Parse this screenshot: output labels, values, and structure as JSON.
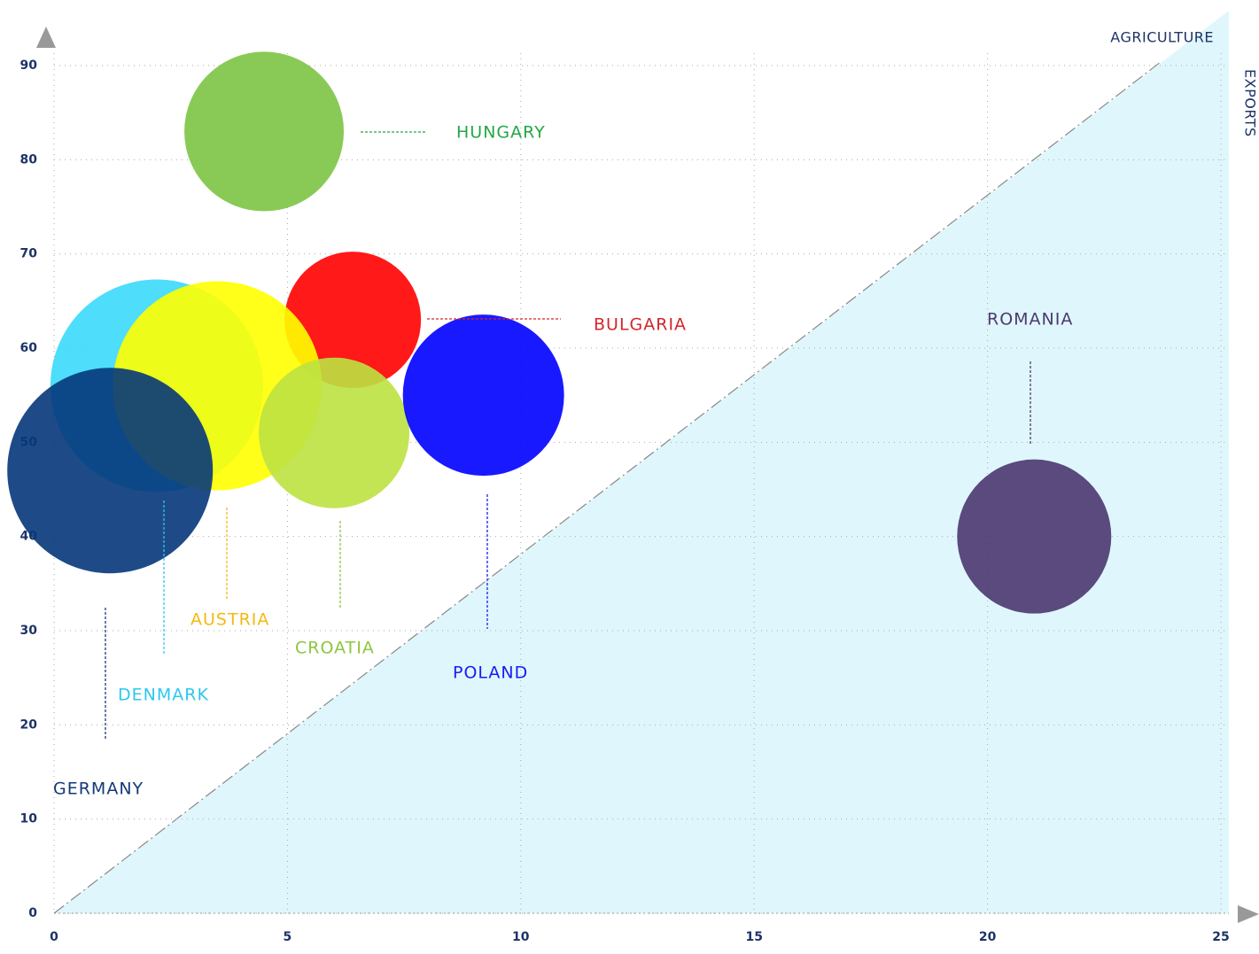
{
  "chart_data": {
    "type": "bubble",
    "x_label": "AGRICULTURE",
    "y_label": "EXPORTS",
    "xlim": [
      0,
      25
    ],
    "xticks": [
      0,
      5,
      10,
      15,
      20,
      25
    ],
    "ylim": [
      0,
      90
    ],
    "yticks": [
      0,
      10,
      20,
      30,
      40,
      50,
      60,
      70,
      80,
      90
    ],
    "grid": true,
    "series": [
      {
        "name": "HUNGARY",
        "color": "#7cc444",
        "label_color": "#23a845",
        "x": [
          4.5
        ],
        "values": [
          83
        ],
        "sizes": [
          90
        ]
      },
      {
        "name": "BULGARIA",
        "color": "#ff0000",
        "label_color": "#d3262b",
        "x": [
          6.4
        ],
        "values": [
          63
        ],
        "sizes": [
          77
        ]
      },
      {
        "name": "DENMARK",
        "color": "#3bd9fb",
        "label_color": "#2cc8ee",
        "x": [
          2.2
        ],
        "values": [
          56
        ],
        "sizes": [
          120
        ]
      },
      {
        "name": "AUSTRIA",
        "color": "#ffff00",
        "label_color": "#f4b915",
        "x": [
          3.5
        ],
        "values": [
          56
        ],
        "sizes": [
          118
        ]
      },
      {
        "name": "CROATIA",
        "color": "#bde241",
        "label_color": "#8dc63f",
        "x": [
          6.0
        ],
        "values": [
          51
        ],
        "sizes": [
          85
        ]
      },
      {
        "name": "POLAND",
        "color": "#0000ff",
        "label_color": "#1b1bf5",
        "x": [
          9.2
        ],
        "values": [
          55
        ],
        "sizes": [
          91
        ]
      },
      {
        "name": "GERMANY",
        "color": "#06377a",
        "label_color": "#143a78",
        "x": [
          1.2
        ],
        "values": [
          47
        ],
        "sizes": [
          116
        ]
      },
      {
        "name": "ROMANIA",
        "color": "#4b3670",
        "label_color": "#4e3a6e",
        "x": [
          21
        ],
        "values": [
          40
        ],
        "sizes": [
          87
        ]
      }
    ]
  }
}
